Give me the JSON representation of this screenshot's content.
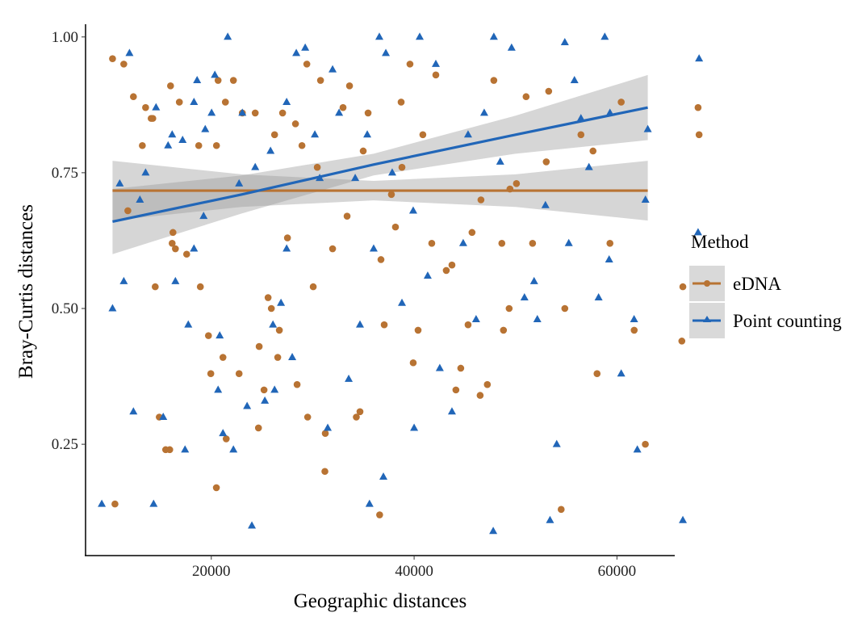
{
  "chart_data": {
    "type": "scatter",
    "title": "",
    "xlabel": "Geographic distances",
    "ylabel": "Bray-Curtis distances",
    "xlim": [
      7600,
      65700
    ],
    "ylim": [
      0.045,
      1.016
    ],
    "xticks": [
      20000,
      40000,
      60000
    ],
    "xtick_labels": [
      "20000",
      "40000",
      "60000"
    ],
    "yticks": [
      0.25,
      0.5,
      0.75,
      1.0
    ],
    "ytick_labels": [
      "0.25",
      "0.50",
      "0.75",
      "1.00"
    ],
    "grid": false,
    "legend": {
      "title": "Method",
      "placement": "right",
      "entries": [
        "eDNA",
        "Point counting"
      ]
    },
    "series": [
      {
        "name": "eDNA",
        "marker": "circle",
        "color": "#B87333",
        "fit": {
          "x": [
            10260,
            23000,
            36000,
            50000,
            63040
          ],
          "y": [
            0.717,
            0.717,
            0.717,
            0.717,
            0.717
          ],
          "ci_halfwidth": [
            0.055,
            0.03,
            0.018,
            0.03,
            0.055
          ]
        },
        "points": [
          [
            10260,
            0.96
          ],
          [
            11370,
            0.95
          ],
          [
            11770,
            0.68
          ],
          [
            12320,
            0.89
          ],
          [
            13200,
            0.8
          ],
          [
            13520,
            0.87
          ],
          [
            14070,
            0.85
          ],
          [
            14230,
            0.85
          ],
          [
            14470,
            0.54
          ],
          [
            14870,
            0.3
          ],
          [
            10500,
            0.14
          ],
          [
            15980,
            0.91
          ],
          [
            16140,
            0.62
          ],
          [
            16220,
            0.64
          ],
          [
            16460,
            0.61
          ],
          [
            16850,
            0.88
          ],
          [
            20500,
            0.17
          ],
          [
            17570,
            0.6
          ],
          [
            18760,
            0.8
          ],
          [
            18920,
            0.54
          ],
          [
            15500,
            0.24
          ],
          [
            15900,
            0.24
          ],
          [
            19720,
            0.45
          ],
          [
            19950,
            0.38
          ],
          [
            20510,
            0.8
          ],
          [
            20670,
            0.92
          ],
          [
            21150,
            0.41
          ],
          [
            21390,
            0.88
          ],
          [
            22180,
            0.92
          ],
          [
            22740,
            0.38
          ],
          [
            23060,
            0.86
          ],
          [
            24330,
            0.86
          ],
          [
            24720,
            0.43
          ],
          [
            25200,
            0.35
          ],
          [
            25600,
            0.52
          ],
          [
            25920,
            0.5
          ],
          [
            26240,
            0.82
          ],
          [
            26550,
            0.41
          ],
          [
            26710,
            0.46
          ],
          [
            27030,
            0.86
          ],
          [
            27510,
            0.63
          ],
          [
            28300,
            0.84
          ],
          [
            28940,
            0.8
          ],
          [
            29420,
            0.95
          ],
          [
            30050,
            0.54
          ],
          [
            30770,
            0.92
          ],
          [
            31240,
            0.27
          ],
          [
            29500,
            0.3
          ],
          [
            32990,
            0.87
          ],
          [
            33630,
            0.91
          ],
          [
            34300,
            0.3
          ],
          [
            35460,
            0.86
          ],
          [
            31200,
            0.2
          ],
          [
            37050,
            0.47
          ],
          [
            37760,
            0.71
          ],
          [
            38160,
            0.65
          ],
          [
            38800,
            0.76
          ],
          [
            39590,
            0.95
          ],
          [
            39910,
            0.4
          ],
          [
            40390,
            0.46
          ],
          [
            40860,
            0.82
          ],
          [
            41740,
            0.62
          ],
          [
            42140,
            0.93
          ],
          [
            43170,
            0.57
          ],
          [
            43730,
            0.58
          ],
          [
            44120,
            0.35
          ],
          [
            44600,
            0.39
          ],
          [
            45320,
            0.47
          ],
          [
            45710,
            0.64
          ],
          [
            46510,
            0.34
          ],
          [
            47220,
            0.36
          ],
          [
            36600,
            0.12
          ],
          [
            48650,
            0.62
          ],
          [
            48810,
            0.46
          ],
          [
            49370,
            0.5
          ],
          [
            50090,
            0.73
          ],
          [
            51680,
            0.62
          ],
          [
            53270,
            0.9
          ],
          [
            54860,
            0.5
          ],
          [
            54500,
            0.13
          ],
          [
            56450,
            0.82
          ],
          [
            57640,
            0.79
          ],
          [
            58040,
            0.38
          ],
          [
            62800,
            0.25
          ],
          [
            59310,
            0.62
          ],
          [
            61700,
            0.46
          ],
          [
            60420,
            0.88
          ],
          [
            66400,
            0.44
          ],
          [
            66500,
            0.54
          ],
          [
            68000,
            0.87
          ],
          [
            68100,
            0.82
          ],
          [
            34660,
            0.31
          ],
          [
            30450,
            0.76
          ],
          [
            33390,
            0.67
          ],
          [
            38720,
            0.88
          ],
          [
            46590,
            0.7
          ],
          [
            47860,
            0.92
          ],
          [
            49450,
            0.72
          ],
          [
            51040,
            0.89
          ],
          [
            53030,
            0.77
          ],
          [
            34980,
            0.79
          ],
          [
            31960,
            0.61
          ],
          [
            24650,
            0.28
          ],
          [
            21470,
            0.26
          ],
          [
            28460,
            0.36
          ],
          [
            36730,
            0.59
          ]
        ]
      },
      {
        "name": "Point counting",
        "marker": "triangle",
        "color": "#2166B8",
        "fit": {
          "x": [
            10260,
            23000,
            36000,
            50000,
            63040
          ],
          "y": [
            0.66,
            0.71,
            0.765,
            0.82,
            0.87
          ],
          "ci_halfwidth": [
            0.06,
            0.035,
            0.02,
            0.035,
            0.06
          ]
        },
        "points": [
          [
            10260,
            0.5
          ],
          [
            11370,
            0.55
          ],
          [
            9200,
            0.14
          ],
          [
            12320,
            0.31
          ],
          [
            12960,
            0.7
          ],
          [
            13520,
            0.75
          ],
          [
            14310,
            0.14
          ],
          [
            14550,
            0.87
          ],
          [
            15260,
            0.3
          ],
          [
            15740,
            0.8
          ],
          [
            16140,
            0.82
          ],
          [
            16460,
            0.55
          ],
          [
            17170,
            0.81
          ],
          [
            17410,
            0.24
          ],
          [
            17730,
            0.47
          ],
          [
            18290,
            0.88
          ],
          [
            18600,
            0.92
          ],
          [
            19400,
            0.83
          ],
          [
            20030,
            0.86
          ],
          [
            20350,
            0.93
          ],
          [
            20670,
            0.35
          ],
          [
            20830,
            0.45
          ],
          [
            21150,
            0.27
          ],
          [
            21620,
            1.0
          ],
          [
            22180,
            0.24
          ],
          [
            22740,
            0.73
          ],
          [
            23060,
            0.86
          ],
          [
            23530,
            0.32
          ],
          [
            24330,
            0.76
          ],
          [
            25280,
            0.33
          ],
          [
            25840,
            0.79
          ],
          [
            26080,
            0.47
          ],
          [
            24000,
            0.1
          ],
          [
            26870,
            0.51
          ],
          [
            27430,
            0.88
          ],
          [
            27980,
            0.41
          ],
          [
            28380,
            0.97
          ],
          [
            29260,
            0.98
          ],
          [
            30210,
            0.82
          ],
          [
            30690,
            0.74
          ],
          [
            31480,
            0.28
          ],
          [
            31960,
            0.94
          ],
          [
            32600,
            0.86
          ],
          [
            33550,
            0.37
          ],
          [
            34660,
            0.47
          ],
          [
            35380,
            0.82
          ],
          [
            36010,
            0.61
          ],
          [
            36570,
            1.0
          ],
          [
            36970,
            0.19
          ],
          [
            37840,
            0.75
          ],
          [
            38800,
            0.51
          ],
          [
            39910,
            0.68
          ],
          [
            40550,
            1.0
          ],
          [
            41340,
            0.56
          ],
          [
            42530,
            0.39
          ],
          [
            43730,
            0.31
          ],
          [
            44840,
            0.62
          ],
          [
            46110,
            0.48
          ],
          [
            46910,
            0.86
          ],
          [
            47860,
            1.0
          ],
          [
            48490,
            0.77
          ],
          [
            49610,
            0.98
          ],
          [
            50880,
            0.52
          ],
          [
            51830,
            0.55
          ],
          [
            52950,
            0.69
          ],
          [
            54060,
            0.25
          ],
          [
            54860,
            0.99
          ],
          [
            55810,
            0.92
          ],
          [
            56450,
            0.85
          ],
          [
            57240,
            0.76
          ],
          [
            58190,
            0.52
          ],
          [
            59230,
            0.59
          ],
          [
            60420,
            0.38
          ],
          [
            61690,
            0.48
          ],
          [
            62010,
            0.24
          ],
          [
            62810,
            0.7
          ],
          [
            63040,
            0.83
          ],
          [
            68000,
            0.64
          ],
          [
            10970,
            0.73
          ],
          [
            11930,
            0.97
          ],
          [
            18290,
            0.61
          ],
          [
            19240,
            0.67
          ],
          [
            27430,
            0.61
          ],
          [
            34190,
            0.74
          ],
          [
            45320,
            0.82
          ],
          [
            52150,
            0.48
          ],
          [
            55250,
            0.62
          ],
          [
            59310,
            0.86
          ],
          [
            66500,
            0.11
          ],
          [
            37210,
            0.97
          ],
          [
            42140,
            0.95
          ],
          [
            26240,
            0.35
          ],
          [
            40000,
            0.28
          ],
          [
            47800,
            0.09
          ],
          [
            53400,
            0.11
          ],
          [
            35600,
            0.14
          ],
          [
            58800,
            1.0
          ],
          [
            68100,
            0.96
          ]
        ]
      }
    ]
  }
}
